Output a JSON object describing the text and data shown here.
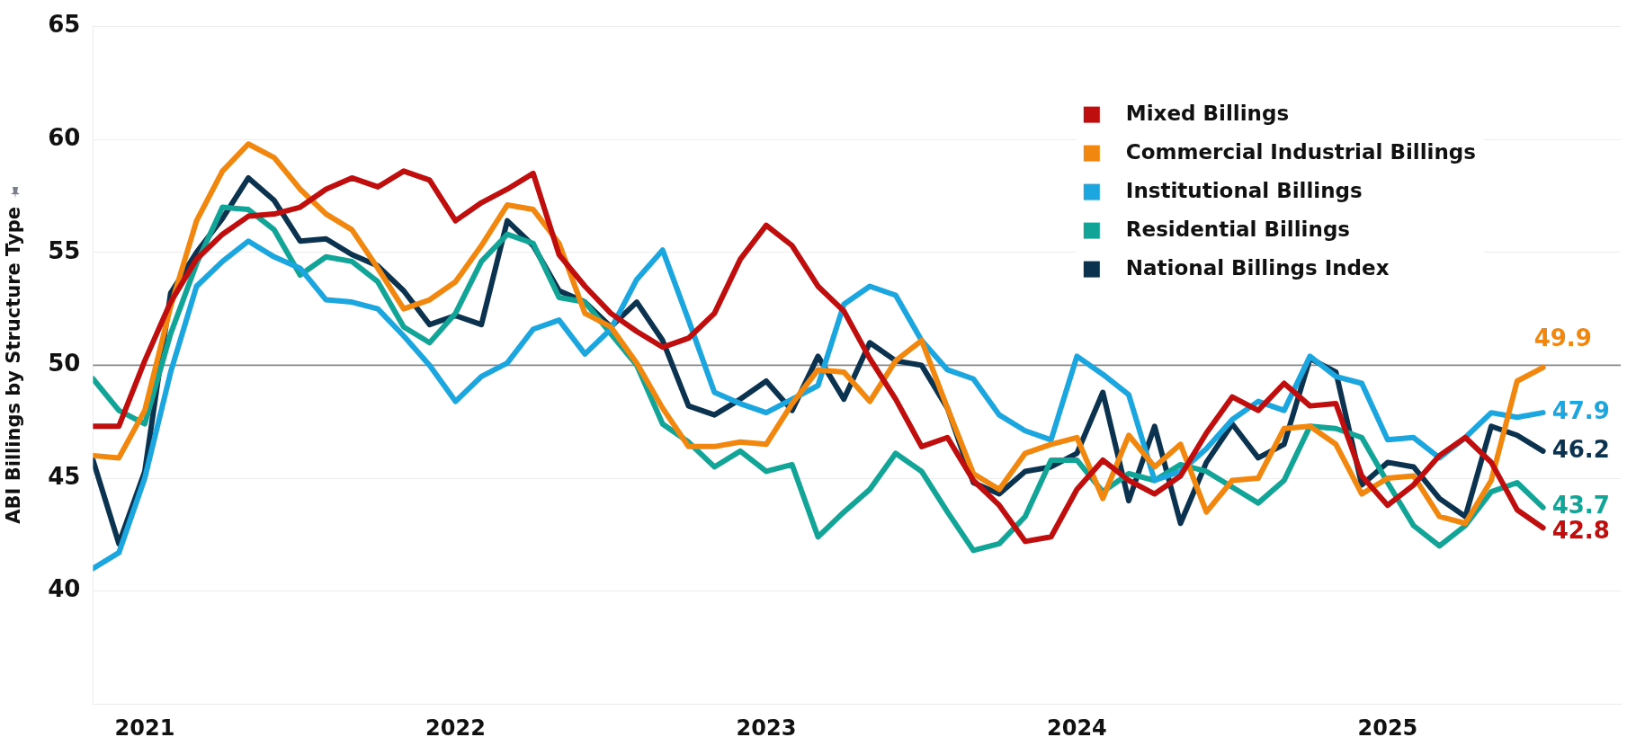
{
  "chart_data": {
    "type": "line",
    "ylabel": "ABI Billings by Structure Type",
    "x": [
      "2020-11",
      "2020-12",
      "2021-01",
      "2021-02",
      "2021-03",
      "2021-04",
      "2021-05",
      "2021-06",
      "2021-07",
      "2021-08",
      "2021-09",
      "2021-10",
      "2021-11",
      "2021-12",
      "2022-01",
      "2022-02",
      "2022-03",
      "2022-04",
      "2022-05",
      "2022-06",
      "2022-07",
      "2022-08",
      "2022-09",
      "2022-10",
      "2022-11",
      "2022-12",
      "2023-01",
      "2023-02",
      "2023-03",
      "2023-04",
      "2023-05",
      "2023-06",
      "2023-07",
      "2023-08",
      "2023-09",
      "2023-10",
      "2023-11",
      "2023-12",
      "2024-01",
      "2024-02",
      "2024-03",
      "2024-04",
      "2024-05",
      "2024-06",
      "2024-07",
      "2024-08",
      "2024-09",
      "2024-10",
      "2024-11",
      "2024-12",
      "2025-01",
      "2025-02",
      "2025-03",
      "2025-04",
      "2025-05",
      "2025-06",
      "2025-07"
    ],
    "series": [
      {
        "name": "Mixed Billings",
        "color": "#c00d0d",
        "values": [
          47.3,
          47.3,
          50.2,
          52.8,
          54.7,
          55.8,
          56.6,
          56.7,
          57.0,
          57.8,
          58.3,
          57.9,
          58.6,
          58.2,
          56.4,
          57.2,
          57.8,
          58.5,
          54.9,
          53.5,
          52.3,
          51.5,
          50.8,
          51.2,
          52.3,
          54.7,
          56.2,
          55.3,
          53.5,
          52.4,
          50.3,
          48.5,
          46.4,
          46.8,
          44.9,
          43.8,
          42.2,
          42.4,
          44.5,
          45.8,
          44.9,
          44.3,
          45.1,
          47.0,
          48.6,
          48.0,
          49.2,
          48.2,
          48.3,
          45.1,
          43.8,
          44.7,
          46.0,
          46.8,
          45.7,
          43.6,
          42.8
        ],
        "value_labels": [
          null,
          null,
          null,
          null,
          null,
          null,
          null,
          null,
          null,
          null,
          null,
          null,
          null,
          null,
          null,
          null,
          null,
          null,
          null,
          null,
          null,
          null,
          null,
          null,
          null,
          null,
          null,
          null,
          null,
          null,
          null,
          null,
          null,
          null,
          null,
          null,
          null,
          null,
          null,
          null,
          null,
          null,
          null,
          null,
          null,
          null,
          null,
          null,
          null,
          null,
          null,
          null,
          null,
          null,
          null,
          null,
          "42.8"
        ]
      },
      {
        "name": "Commercial Industrial Billings",
        "color": "#f2870f",
        "values": [
          46.0,
          45.9,
          48.0,
          52.6,
          56.4,
          58.6,
          59.8,
          59.2,
          57.8,
          56.7,
          56.0,
          54.3,
          52.5,
          52.9,
          53.7,
          55.3,
          57.1,
          56.9,
          55.4,
          52.3,
          51.7,
          50.1,
          48.1,
          46.4,
          46.4,
          46.6,
          46.5,
          48.3,
          49.8,
          49.7,
          48.4,
          50.2,
          51.1,
          48.1,
          45.2,
          44.5,
          46.1,
          46.5,
          46.8,
          44.1,
          46.9,
          45.5,
          46.5,
          43.5,
          44.9,
          45.0,
          47.2,
          47.3,
          46.5,
          44.3,
          45.0,
          45.1,
          43.3,
          43.0,
          44.9,
          49.3,
          49.9
        ],
        "value_labels": [
          null,
          null,
          null,
          null,
          null,
          null,
          null,
          null,
          null,
          null,
          null,
          null,
          null,
          null,
          null,
          null,
          null,
          null,
          null,
          null,
          null,
          null,
          null,
          null,
          null,
          null,
          null,
          null,
          null,
          null,
          null,
          null,
          null,
          null,
          null,
          null,
          null,
          null,
          null,
          null,
          null,
          null,
          null,
          null,
          null,
          null,
          null,
          null,
          null,
          null,
          null,
          null,
          null,
          null,
          null,
          null,
          "49.9"
        ]
      },
      {
        "name": "Institutional Billings",
        "color": "#1ba6e0",
        "values": [
          41.0,
          41.7,
          45.0,
          49.7,
          53.5,
          54.6,
          55.5,
          54.8,
          54.3,
          52.9,
          52.8,
          52.5,
          51.3,
          50.0,
          48.4,
          49.5,
          50.1,
          51.6,
          52.0,
          50.5,
          51.6,
          53.8,
          55.1,
          52.0,
          48.8,
          48.3,
          47.9,
          48.5,
          49.1,
          52.7,
          53.5,
          53.1,
          51.1,
          49.8,
          49.4,
          47.8,
          47.1,
          46.7,
          50.4,
          49.6,
          48.7,
          44.9,
          45.3,
          46.3,
          47.6,
          48.4,
          48.0,
          50.4,
          49.5,
          49.2,
          46.7,
          46.8,
          45.9,
          46.8,
          47.9,
          47.7,
          47.9
        ],
        "value_labels": [
          null,
          null,
          null,
          null,
          null,
          null,
          null,
          null,
          null,
          null,
          null,
          null,
          null,
          null,
          null,
          null,
          null,
          null,
          null,
          null,
          null,
          null,
          null,
          null,
          null,
          null,
          null,
          null,
          null,
          null,
          null,
          null,
          null,
          null,
          null,
          null,
          null,
          null,
          null,
          null,
          null,
          null,
          null,
          null,
          null,
          null,
          null,
          null,
          null,
          null,
          null,
          null,
          null,
          null,
          null,
          null,
          "47.9"
        ]
      },
      {
        "name": "Residential Billings",
        "color": "#12a597",
        "values": [
          49.4,
          48.0,
          47.4,
          51.4,
          54.5,
          57.0,
          56.9,
          56.0,
          54.0,
          54.8,
          54.6,
          53.7,
          51.7,
          51.0,
          52.3,
          54.6,
          55.8,
          55.4,
          53.0,
          52.8,
          51.4,
          50.0,
          47.4,
          46.6,
          45.5,
          46.2,
          45.3,
          45.6,
          42.4,
          43.5,
          44.5,
          46.1,
          45.3,
          43.5,
          41.8,
          42.1,
          43.3,
          45.8,
          45.8,
          44.4,
          45.2,
          44.9,
          45.6,
          45.3,
          44.6,
          43.9,
          44.9,
          47.3,
          47.2,
          46.8,
          44.8,
          42.9,
          42.0,
          42.9,
          44.4,
          44.8,
          43.7
        ],
        "value_labels": [
          null,
          null,
          null,
          null,
          null,
          null,
          null,
          null,
          null,
          null,
          null,
          null,
          null,
          null,
          null,
          null,
          null,
          null,
          null,
          null,
          null,
          null,
          null,
          null,
          null,
          null,
          null,
          null,
          null,
          null,
          null,
          null,
          null,
          null,
          null,
          null,
          null,
          null,
          null,
          null,
          null,
          null,
          null,
          null,
          null,
          null,
          null,
          null,
          null,
          null,
          null,
          null,
          null,
          null,
          null,
          null,
          "43.7"
        ]
      },
      {
        "name": "National Billings Index",
        "color": "#0b3350",
        "values": [
          45.8,
          42.1,
          45.3,
          53.2,
          55.0,
          56.5,
          58.3,
          57.3,
          55.5,
          55.6,
          54.9,
          54.4,
          53.3,
          51.8,
          52.2,
          51.8,
          56.4,
          55.3,
          53.3,
          52.8,
          51.7,
          52.8,
          51.1,
          48.2,
          47.8,
          48.5,
          49.3,
          48.0,
          50.4,
          48.5,
          51.0,
          50.2,
          50.0,
          48.1,
          44.8,
          44.3,
          45.3,
          45.5,
          46.1,
          48.8,
          44.0,
          47.3,
          43.0,
          45.7,
          47.4,
          45.9,
          46.5,
          50.3,
          49.7,
          44.7,
          45.7,
          45.5,
          44.1,
          43.3,
          47.3,
          46.9,
          46.2
        ],
        "value_labels": [
          null,
          null,
          null,
          null,
          null,
          null,
          null,
          null,
          null,
          null,
          null,
          null,
          null,
          null,
          null,
          null,
          null,
          null,
          null,
          null,
          null,
          null,
          null,
          null,
          null,
          null,
          null,
          null,
          null,
          null,
          null,
          null,
          null,
          null,
          null,
          null,
          null,
          null,
          null,
          null,
          null,
          null,
          null,
          null,
          null,
          null,
          null,
          null,
          null,
          null,
          null,
          null,
          null,
          null,
          null,
          null,
          "46.2"
        ]
      }
    ],
    "xlim": [
      "2020-11",
      "2025-10"
    ],
    "xticks": [
      "2021",
      "2022",
      "2023",
      "2024",
      "2025"
    ],
    "ylim": [
      35,
      65
    ],
    "yticks": [
      40,
      45,
      50,
      55,
      60,
      65
    ],
    "ref_lines": [
      {
        "axis": "y",
        "value": 50,
        "color": "#888888"
      }
    ],
    "grid": "y",
    "legend": "top right",
    "marker": "none"
  }
}
